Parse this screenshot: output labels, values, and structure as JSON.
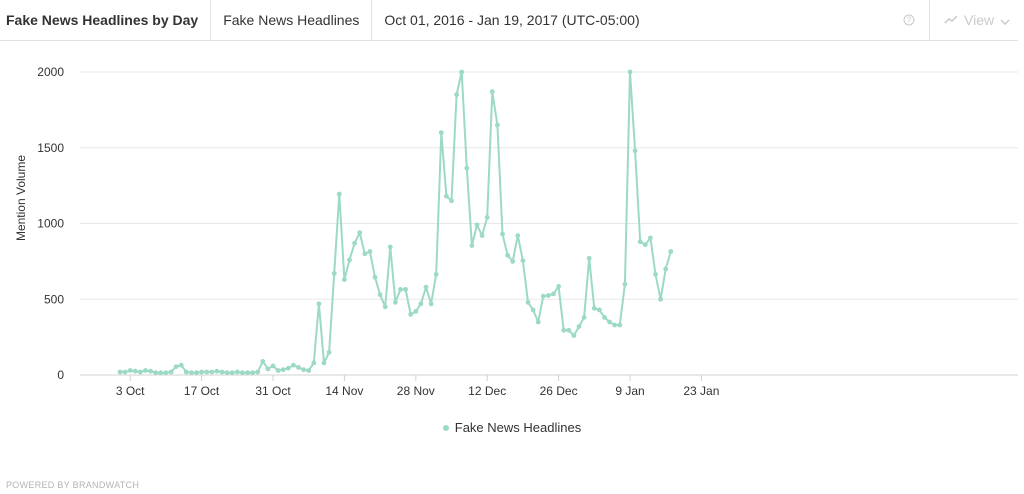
{
  "header": {
    "title": "Fake News Headlines by Day",
    "query": "Fake News Headlines",
    "date_range": "Oct 01, 2016 - Jan 19, 2017 (UTC-05:00)",
    "view_label": "View",
    "help_icon": "question-circle-icon",
    "view_icon": "line-chart-icon"
  },
  "colors": {
    "series": "#9cd9c6",
    "grid": "#e8e8e8",
    "axis": "#d0d0d0",
    "muted": "#c9c9c9"
  },
  "footer": {
    "text": "POWERED BY BRANDWATCH"
  },
  "chart_data": {
    "type": "line",
    "title": "",
    "xlabel": "",
    "ylabel": "Mention Volume",
    "ylim": [
      0,
      2000
    ],
    "yticks": [
      "0",
      "500",
      "1000",
      "1500",
      "2000"
    ],
    "xticks": [
      "3 Oct",
      "17 Oct",
      "31 Oct",
      "14 Nov",
      "28 Nov",
      "12 Dec",
      "26 Dec",
      "9 Jan",
      "23 Jan"
    ],
    "grid": true,
    "legend_position": "bottom-center",
    "series": [
      {
        "name": "Fake News Headlines",
        "values": [
          20,
          20,
          30,
          25,
          20,
          30,
          25,
          15,
          15,
          15,
          20,
          55,
          65,
          20,
          15,
          15,
          20,
          20,
          20,
          25,
          20,
          15,
          15,
          20,
          15,
          15,
          15,
          20,
          90,
          40,
          60,
          30,
          35,
          45,
          65,
          50,
          35,
          30,
          80,
          470,
          80,
          150,
          670,
          1195,
          630,
          760,
          870,
          940,
          800,
          815,
          645,
          530,
          450,
          845,
          480,
          565,
          565,
          400,
          420,
          470,
          580,
          470,
          665,
          1600,
          1180,
          1150,
          1850,
          2000,
          1365,
          855,
          990,
          920,
          1040,
          1870,
          1650,
          930,
          790,
          750,
          920,
          755,
          480,
          430,
          350,
          520,
          525,
          535,
          585,
          295,
          295,
          260,
          320,
          380,
          770,
          440,
          430,
          380,
          350,
          330,
          330,
          600,
          2000,
          1480,
          880,
          860,
          905,
          665,
          500,
          700,
          815
        ]
      }
    ]
  }
}
